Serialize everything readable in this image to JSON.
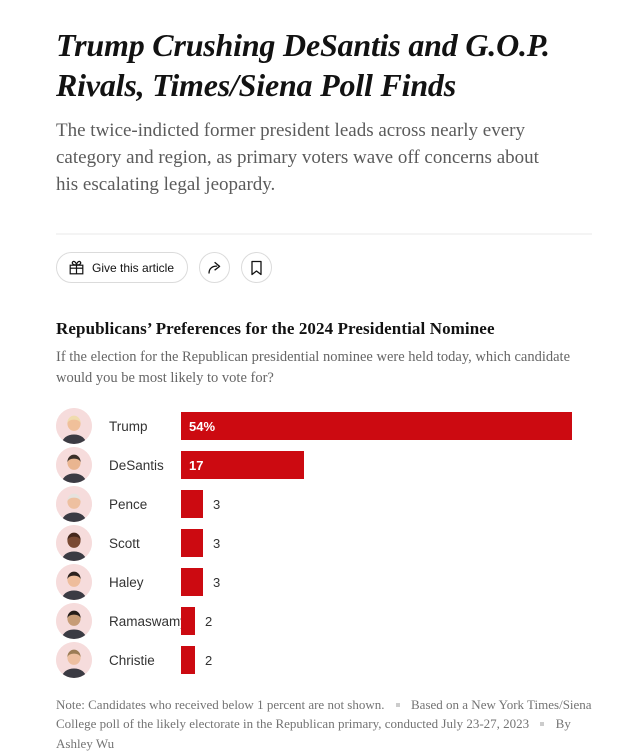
{
  "article": {
    "headline": "Trump Crushing DeSantis and G.O.P. Rivals, Times/Siena Poll Finds",
    "subheadline": "The twice-indicted former president leads across nearly every category and region, as primary voters wave off concerns about his escalating legal jeopardy.",
    "actions": {
      "give_label": "Give this article",
      "share_icon": "share-arrow-icon",
      "bookmark_icon": "bookmark-icon",
      "gift_icon": "gift-icon"
    }
  },
  "colors": {
    "bar_red": "#cc0a11",
    "avatar_bg": "#f6dcdc",
    "suit": "#3b3b43",
    "headline_text": "#121212",
    "muted_text": "#5b5b5b",
    "note_text": "#737373",
    "button_border": "#dbdbdb"
  },
  "chart_data": {
    "type": "bar",
    "orientation": "horizontal",
    "title": "Republicans’ Preferences for the 2024 Presidential Nominee",
    "subtitle": "If the election for the Republican presidential nominee were held today, which candidate would you be most likely to vote for?",
    "categories": [
      "Trump",
      "DeSantis",
      "Pence",
      "Scott",
      "Haley",
      "Ramaswamy",
      "Christie"
    ],
    "values": [
      54,
      17,
      3,
      3,
      3,
      2,
      2
    ],
    "value_labels": [
      "54%",
      "17",
      "3",
      "3",
      "3",
      "2",
      "2"
    ],
    "xlim": [
      0,
      54
    ],
    "unit": "percent",
    "legend": "none",
    "grid": "off",
    "avatars": [
      {
        "name": "Trump",
        "skin": "#f0c09a",
        "hair": "#f0dcae"
      },
      {
        "name": "DeSantis",
        "skin": "#e9b590",
        "hair": "#3a2f28"
      },
      {
        "name": "Pence",
        "skin": "#eec0a0",
        "hair": "#e6e3df"
      },
      {
        "name": "Scott",
        "skin": "#7a4a33",
        "hair": "#45281c"
      },
      {
        "name": "Haley",
        "skin": "#eebd9c",
        "hair": "#2c221e"
      },
      {
        "name": "Ramaswamy",
        "skin": "#c79c76",
        "hair": "#241d19"
      },
      {
        "name": "Christie",
        "skin": "#edbfa0",
        "hair": "#9b7c55"
      }
    ],
    "note": "Note: Candidates who received below 1 percent are not shown.",
    "source": "Based on a New York Times/Siena College poll of the likely electorate in the Republican primary, conducted July 23-27, 2023",
    "byline": "By Ashley Wu"
  }
}
